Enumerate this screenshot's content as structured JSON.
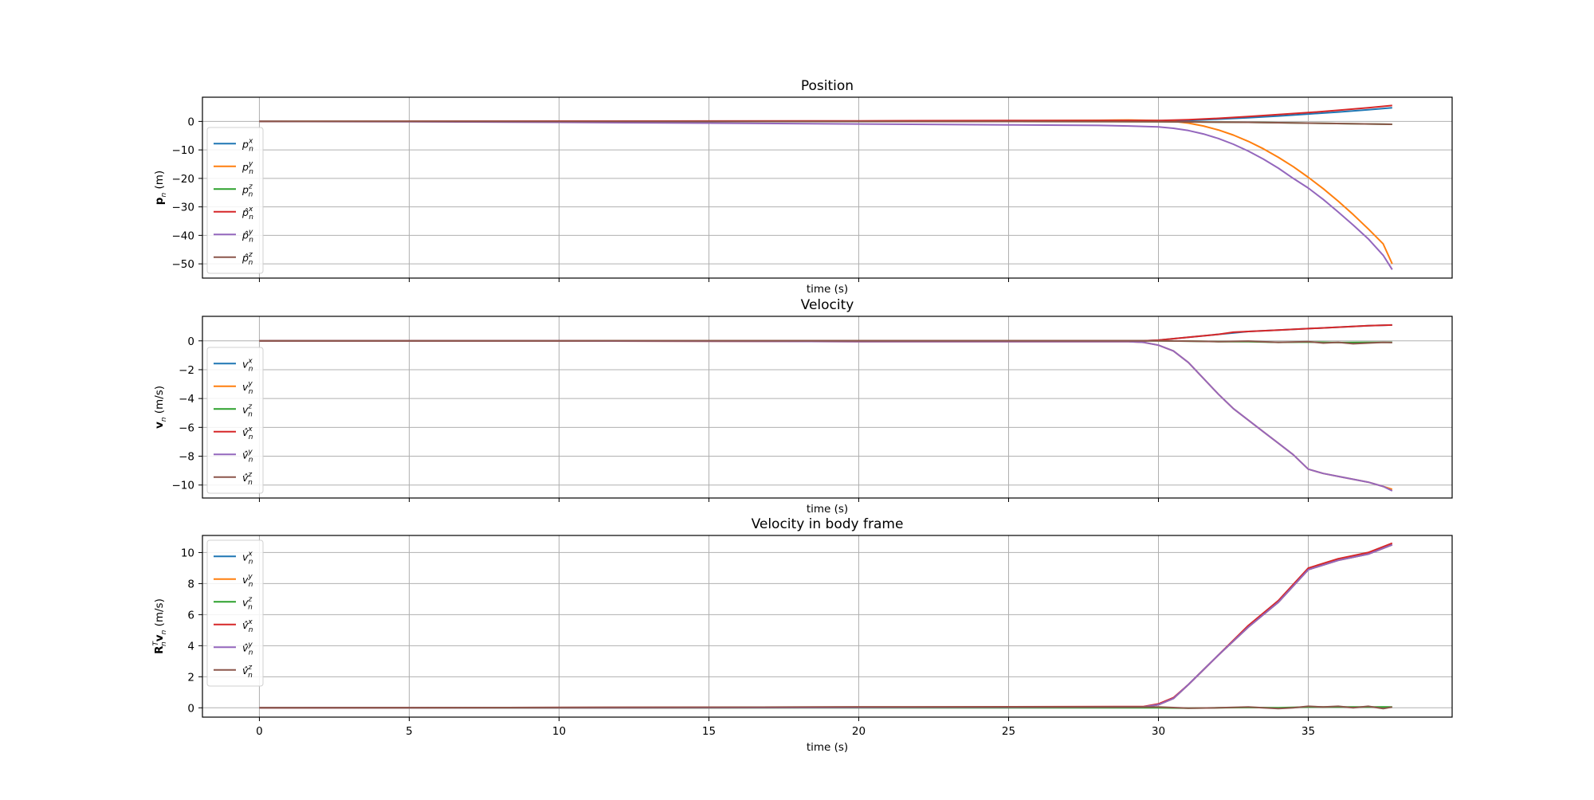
{
  "chart_data": [
    {
      "type": "line",
      "title": "Position",
      "xlabel": "time (s)",
      "ylabel": "p_n (m)",
      "ylabel_parts": {
        "bold": "p",
        "sub": "n",
        "rest": " (m)"
      },
      "xlim": [
        -1.9,
        39.8
      ],
      "ylim": [
        -55,
        8.5
      ],
      "xticks": [
        0,
        5,
        10,
        15,
        20,
        25,
        30,
        35
      ],
      "yticks": [
        0,
        -10,
        -20,
        -30,
        -40,
        -50
      ],
      "show_xtick_labels": false,
      "grid": true,
      "legend_position": "lower-left",
      "series": [
        {
          "name": "p_n^x",
          "base": "p",
          "sup": "x",
          "hat": false,
          "color": "#1f77b4",
          "x": [
            0,
            10,
            20,
            27,
            30,
            31,
            32,
            33,
            34,
            35,
            36,
            37,
            37.8
          ],
          "y": [
            0,
            0,
            0,
            0,
            0,
            0.3,
            0.8,
            1.3,
            1.9,
            2.6,
            3.3,
            4.1,
            4.8
          ]
        },
        {
          "name": "p_n^y",
          "base": "p",
          "sup": "y",
          "hat": false,
          "color": "#ff7f0e",
          "x": [
            0,
            10,
            20,
            25,
            28,
            29,
            30,
            30.5,
            31,
            31.5,
            32,
            32.5,
            33,
            33.5,
            34,
            34.5,
            35,
            35.5,
            36,
            36.5,
            37,
            37.5,
            37.8
          ],
          "y": [
            0,
            0,
            0.1,
            0.2,
            0.4,
            0.5,
            0.3,
            0,
            -0.6,
            -1.6,
            -3.0,
            -4.8,
            -7.0,
            -9.6,
            -12.6,
            -15.9,
            -19.6,
            -23.6,
            -28.0,
            -32.7,
            -37.7,
            -43.0,
            -50.0
          ]
        },
        {
          "name": "p_n^z",
          "base": "p",
          "sup": "z",
          "hat": false,
          "color": "#2ca02c",
          "x": [
            0,
            10,
            20,
            30,
            33,
            35,
            37.8
          ],
          "y": [
            0,
            0,
            0,
            -0.1,
            -0.3,
            -0.6,
            -1.0
          ]
        },
        {
          "name": "p̂_n^x",
          "base": "p",
          "sup": "x",
          "hat": true,
          "color": "#d62728",
          "x": [
            0,
            10,
            20,
            25,
            28,
            30,
            31,
            32,
            33,
            34,
            35,
            36,
            37,
            37.8
          ],
          "y": [
            0,
            0.1,
            0.2,
            0.3,
            0.3,
            0.3,
            0.6,
            1.1,
            1.7,
            2.4,
            3.1,
            3.9,
            4.8,
            5.6
          ]
        },
        {
          "name": "p̂_n^y",
          "base": "p",
          "sup": "y",
          "hat": true,
          "color": "#9467bd",
          "x": [
            0,
            5,
            10,
            15,
            20,
            25,
            28,
            29,
            30,
            30.5,
            31,
            31.5,
            32,
            32.5,
            33,
            33.5,
            34,
            34.5,
            35,
            35.5,
            36,
            36.5,
            37,
            37.5,
            37.8
          ],
          "y": [
            0,
            -0.1,
            -0.3,
            -0.6,
            -0.9,
            -1.2,
            -1.4,
            -1.6,
            -1.9,
            -2.4,
            -3.2,
            -4.4,
            -6.0,
            -8.0,
            -10.4,
            -13.2,
            -16.4,
            -20.0,
            -23.4,
            -27.4,
            -31.8,
            -36.4,
            -41.2,
            -47.0,
            -52.0
          ]
        },
        {
          "name": "p̂_n^z",
          "base": "p",
          "sup": "z",
          "hat": true,
          "color": "#8c564b",
          "x": [
            0,
            10,
            20,
            30,
            33,
            35,
            37.8
          ],
          "y": [
            0,
            0,
            0,
            -0.1,
            -0.3,
            -0.6,
            -1.0
          ]
        }
      ]
    },
    {
      "type": "line",
      "title": "Velocity",
      "xlabel": "time (s)",
      "ylabel": "v_n (m/s)",
      "ylabel_parts": {
        "bold": "v",
        "sub": "n",
        "rest": " (m/s)"
      },
      "xlim": [
        -1.9,
        39.8
      ],
      "ylim": [
        -10.9,
        1.7
      ],
      "xticks": [
        0,
        5,
        10,
        15,
        20,
        25,
        30,
        35
      ],
      "yticks": [
        0,
        -2,
        -4,
        -6,
        -8,
        -10
      ],
      "show_xtick_labels": false,
      "grid": true,
      "legend_position": "lower-left",
      "series": [
        {
          "name": "v_n^x",
          "base": "v",
          "sup": "x",
          "hat": false,
          "color": "#1f77b4",
          "x": [
            0,
            10,
            20,
            29.5,
            30,
            31,
            32,
            33,
            34,
            35,
            36,
            37,
            37.8
          ],
          "y": [
            0,
            0,
            0,
            0,
            0.05,
            0.25,
            0.45,
            0.65,
            0.75,
            0.85,
            0.95,
            1.05,
            1.1
          ]
        },
        {
          "name": "v_n^y",
          "base": "v",
          "sup": "y",
          "hat": false,
          "color": "#ff7f0e",
          "x": [
            0,
            10,
            20,
            29,
            29.5,
            30,
            30.5,
            31,
            31.5,
            32,
            32.5,
            33,
            33.5,
            34,
            34.5,
            35,
            35.5,
            36,
            36.5,
            37,
            37.5,
            37.8
          ],
          "y": [
            0,
            0,
            -0.05,
            -0.05,
            -0.1,
            -0.3,
            -0.7,
            -1.5,
            -2.6,
            -3.7,
            -4.7,
            -5.5,
            -6.3,
            -7.1,
            -7.9,
            -8.9,
            -9.2,
            -9.4,
            -9.6,
            -9.8,
            -10.1,
            -10.3
          ]
        },
        {
          "name": "v_n^z",
          "base": "v",
          "sup": "z",
          "hat": false,
          "color": "#2ca02c",
          "x": [
            0,
            10,
            20,
            30,
            31,
            32,
            33,
            34,
            35,
            36,
            37,
            37.8
          ],
          "y": [
            0,
            0,
            0,
            0,
            -0.02,
            -0.05,
            -0.05,
            -0.1,
            -0.08,
            -0.12,
            -0.1,
            -0.1
          ]
        },
        {
          "name": "v̂_n^x",
          "base": "v",
          "sup": "x",
          "hat": true,
          "color": "#d62728",
          "x": [
            0,
            10,
            20,
            29.5,
            30,
            31,
            32,
            32.5,
            33,
            34,
            35,
            36,
            37,
            37.8
          ],
          "y": [
            0,
            0,
            0,
            0,
            0.05,
            0.25,
            0.45,
            0.6,
            0.65,
            0.75,
            0.85,
            0.95,
            1.05,
            1.1
          ]
        },
        {
          "name": "v̂_n^y",
          "base": "v",
          "sup": "y",
          "hat": true,
          "color": "#9467bd",
          "x": [
            0,
            10,
            20,
            29,
            29.5,
            30,
            30.5,
            31,
            31.5,
            32,
            32.5,
            33,
            33.5,
            34,
            34.5,
            35,
            35.5,
            36,
            36.5,
            37,
            37.5,
            37.8
          ],
          "y": [
            0,
            0,
            -0.05,
            -0.05,
            -0.1,
            -0.3,
            -0.7,
            -1.5,
            -2.6,
            -3.7,
            -4.7,
            -5.5,
            -6.3,
            -7.1,
            -7.9,
            -8.9,
            -9.2,
            -9.4,
            -9.6,
            -9.8,
            -10.1,
            -10.4
          ]
        },
        {
          "name": "v̂_n^z",
          "base": "v",
          "sup": "z",
          "hat": true,
          "color": "#8c564b",
          "x": [
            0,
            10,
            20,
            30,
            31,
            32,
            33,
            34,
            35,
            35.5,
            36,
            36.5,
            37,
            37.5,
            37.8
          ],
          "y": [
            0,
            0,
            0,
            0,
            -0.02,
            -0.05,
            -0.02,
            -0.1,
            -0.05,
            -0.15,
            -0.1,
            -0.2,
            -0.15,
            -0.1,
            -0.12
          ]
        }
      ]
    },
    {
      "type": "line",
      "title": "Velocity in body frame",
      "xlabel": "time (s)",
      "ylabel": "R_n^T v_n (m/s)",
      "ylabel_parts": {
        "bold": "R",
        "sup": "T",
        "sub": "n",
        "bold2": "v",
        "sub2": "n",
        "rest": " (m/s)"
      },
      "xlim": [
        -1.9,
        39.8
      ],
      "ylim": [
        -0.6,
        11.1
      ],
      "xticks": [
        0,
        5,
        10,
        15,
        20,
        25,
        30,
        35
      ],
      "yticks": [
        0,
        2,
        4,
        6,
        8,
        10
      ],
      "show_xtick_labels": true,
      "grid": true,
      "legend_position": "upper-left",
      "series": [
        {
          "name": "v_n^x",
          "base": "v",
          "sup": "x",
          "hat": false,
          "color": "#1f77b4",
          "x": [
            0,
            10,
            20,
            29.5,
            30,
            30.5,
            31,
            32,
            33,
            34,
            35,
            36,
            37,
            37.8
          ],
          "y": [
            0,
            0,
            0.02,
            0.05,
            0.2,
            0.6,
            1.5,
            3.4,
            5.2,
            6.8,
            8.9,
            9.5,
            9.9,
            10.5
          ]
        },
        {
          "name": "v_n^y",
          "base": "v",
          "sup": "y",
          "hat": false,
          "color": "#ff7f0e",
          "x": [
            0,
            10,
            20,
            29.5,
            30,
            30.5,
            31,
            32,
            33,
            34,
            35,
            36,
            37,
            37.8
          ],
          "y": [
            0,
            0,
            0.02,
            0.05,
            0.2,
            0.6,
            1.5,
            3.4,
            5.2,
            6.8,
            8.9,
            9.5,
            9.9,
            10.5
          ]
        },
        {
          "name": "v_n^z",
          "base": "v",
          "sup": "z",
          "hat": false,
          "color": "#2ca02c",
          "x": [
            0,
            10,
            20,
            30,
            31,
            32,
            33,
            34,
            35,
            36,
            37,
            37.8
          ],
          "y": [
            0,
            0,
            0,
            0,
            -0.02,
            0,
            0.02,
            0,
            0.05,
            0.05,
            0.05,
            0.05
          ]
        },
        {
          "name": "v̂_n^x",
          "base": "v",
          "sup": "x",
          "hat": true,
          "color": "#d62728",
          "x": [
            0,
            10,
            20,
            29.5,
            30,
            30.5,
            31,
            32,
            33,
            34,
            35,
            36,
            37,
            37.8
          ],
          "y": [
            0,
            0.02,
            0.05,
            0.08,
            0.25,
            0.65,
            1.5,
            3.4,
            5.3,
            6.9,
            9.0,
            9.6,
            10.0,
            10.6
          ]
        },
        {
          "name": "v̂_n^y",
          "base": "v",
          "sup": "y",
          "hat": true,
          "color": "#9467bd",
          "x": [
            0,
            10,
            20,
            29.5,
            30,
            30.5,
            31,
            32,
            33,
            34,
            35,
            36,
            37,
            37.8
          ],
          "y": [
            0,
            0,
            0.02,
            0.05,
            0.2,
            0.6,
            1.5,
            3.4,
            5.2,
            6.8,
            8.9,
            9.5,
            9.9,
            10.5
          ]
        },
        {
          "name": "v̂_n^z",
          "base": "v",
          "sup": "z",
          "hat": true,
          "color": "#8c564b",
          "x": [
            0,
            10,
            20,
            30,
            31,
            32,
            33,
            34,
            34.5,
            35,
            35.5,
            36,
            36.5,
            37,
            37.5,
            37.8
          ],
          "y": [
            0,
            0.02,
            0.05,
            0.05,
            -0.02,
            0,
            0.05,
            -0.05,
            0,
            0.1,
            0.05,
            0.1,
            0,
            0.1,
            -0.05,
            0.05
          ]
        }
      ]
    }
  ]
}
